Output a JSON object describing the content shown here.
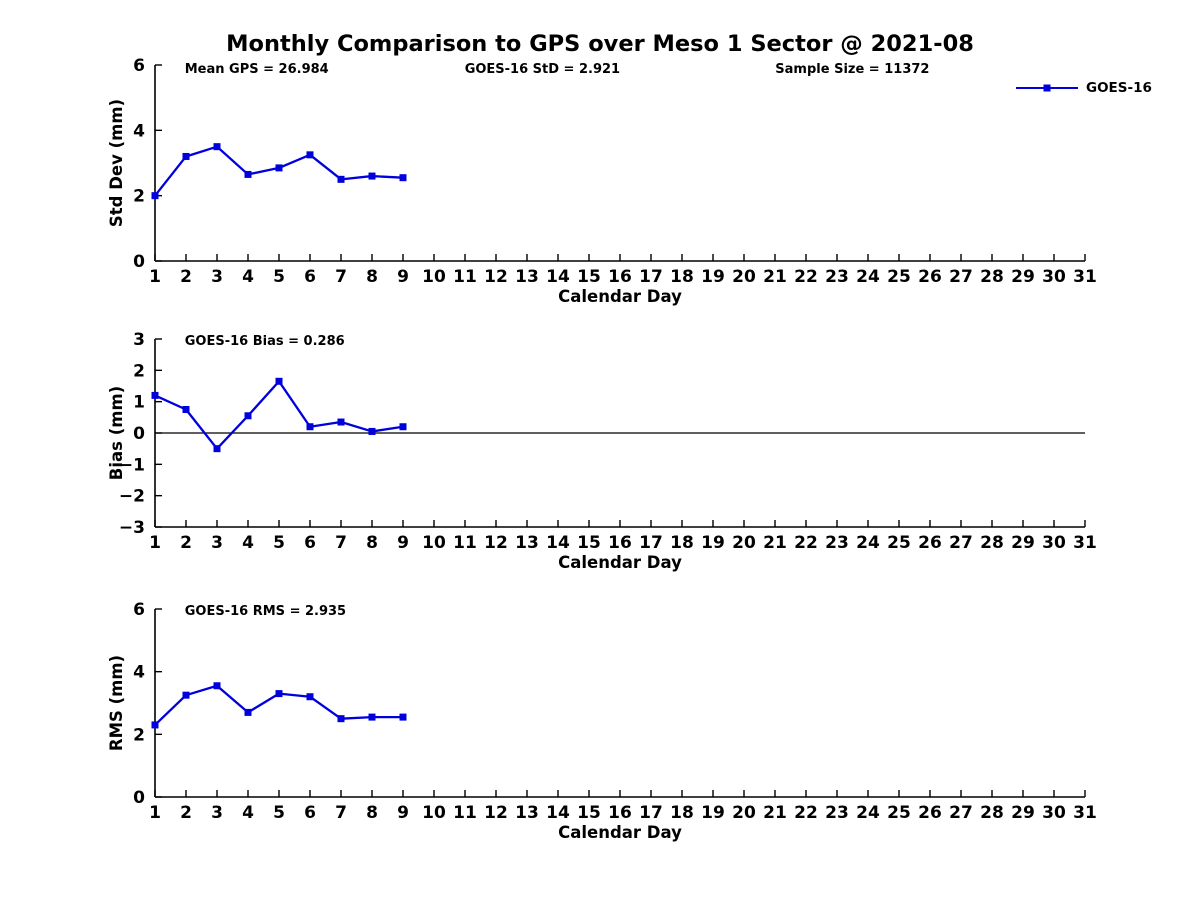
{
  "title": "Monthly Comparison to GPS over Meso 1 Sector @ 2021-08",
  "legend": {
    "label": "GOES-16"
  },
  "colors": {
    "series": "#0000dd",
    "axis": "#000000",
    "text": "#000000",
    "background": "#ffffff"
  },
  "chart_data": [
    {
      "id": "std-dev",
      "type": "line",
      "ylabel": "Std Dev (mm)",
      "xlabel": "Calendar Day",
      "xlim": [
        1,
        31
      ],
      "ylim": [
        0,
        6
      ],
      "xticks": [
        1,
        2,
        3,
        4,
        5,
        6,
        7,
        8,
        9,
        10,
        11,
        12,
        13,
        14,
        15,
        16,
        17,
        18,
        19,
        20,
        21,
        22,
        23,
        24,
        25,
        26,
        27,
        28,
        29,
        30,
        31
      ],
      "yticks": [
        0,
        2,
        4,
        6
      ],
      "zero_line": false,
      "grid": false,
      "annotations": [
        "Mean GPS = 26.984",
        "GOES-16 StD = 2.921",
        "Sample Size = 11372"
      ],
      "series": [
        {
          "name": "GOES-16",
          "x": [
            1,
            2,
            3,
            4,
            5,
            6,
            7,
            8,
            9
          ],
          "y": [
            2.0,
            3.2,
            3.5,
            2.65,
            2.85,
            3.25,
            2.5,
            2.6,
            2.55
          ]
        }
      ]
    },
    {
      "id": "bias",
      "type": "line",
      "ylabel": "Bias (mm)",
      "xlabel": "Calendar Day",
      "xlim": [
        1,
        31
      ],
      "ylim": [
        -3,
        3
      ],
      "xticks": [
        1,
        2,
        3,
        4,
        5,
        6,
        7,
        8,
        9,
        10,
        11,
        12,
        13,
        14,
        15,
        16,
        17,
        18,
        19,
        20,
        21,
        22,
        23,
        24,
        25,
        26,
        27,
        28,
        29,
        30,
        31
      ],
      "yticks": [
        -3,
        -2,
        -1,
        0,
        1,
        2,
        3
      ],
      "zero_line": true,
      "grid": false,
      "annotations": [
        "GOES-16 Bias = 0.286"
      ],
      "series": [
        {
          "name": "GOES-16",
          "x": [
            1,
            2,
            3,
            4,
            5,
            6,
            7,
            8,
            9
          ],
          "y": [
            1.2,
            0.75,
            -0.5,
            0.55,
            1.65,
            0.2,
            0.35,
            0.05,
            0.2
          ]
        }
      ]
    },
    {
      "id": "rms",
      "type": "line",
      "ylabel": "RMS (mm)",
      "xlabel": "Calendar Day",
      "xlim": [
        1,
        31
      ],
      "ylim": [
        0,
        6
      ],
      "xticks": [
        1,
        2,
        3,
        4,
        5,
        6,
        7,
        8,
        9,
        10,
        11,
        12,
        13,
        14,
        15,
        16,
        17,
        18,
        19,
        20,
        21,
        22,
        23,
        24,
        25,
        26,
        27,
        28,
        29,
        30,
        31
      ],
      "yticks": [
        0,
        2,
        4,
        6
      ],
      "zero_line": false,
      "grid": false,
      "annotations": [
        "GOES-16 RMS = 2.935"
      ],
      "series": [
        {
          "name": "GOES-16",
          "x": [
            1,
            2,
            3,
            4,
            5,
            6,
            7,
            8,
            9
          ],
          "y": [
            2.3,
            3.25,
            3.55,
            2.7,
            3.3,
            3.2,
            2.5,
            2.55,
            2.55
          ]
        }
      ]
    }
  ]
}
